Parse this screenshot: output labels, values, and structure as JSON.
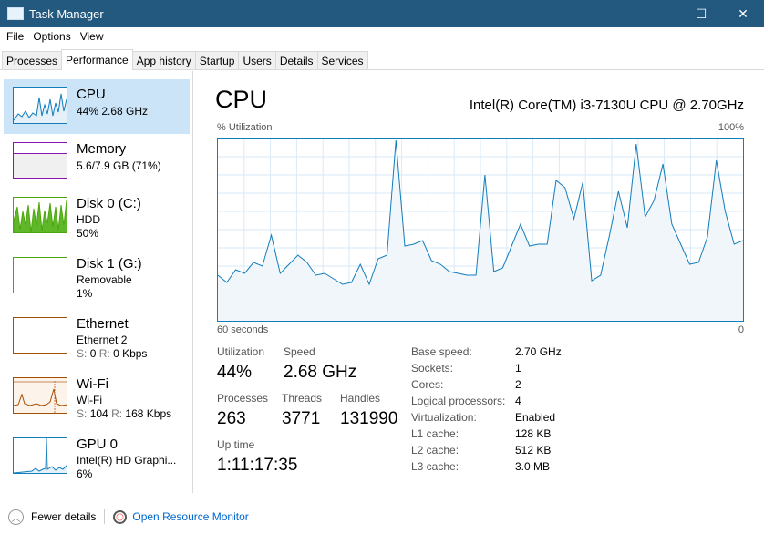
{
  "window": {
    "title": "Task Manager",
    "minimize": "—",
    "maximize": "☐",
    "close": "✕"
  },
  "menu": [
    "File",
    "Options",
    "View"
  ],
  "tabs": [
    "Processes",
    "Performance",
    "App history",
    "Startup",
    "Users",
    "Details",
    "Services"
  ],
  "active_tab": "Performance",
  "sidebar": [
    {
      "name": "CPU",
      "line1": "44%  2.68 GHz",
      "color": "#117dbb"
    },
    {
      "name": "Memory",
      "line1": "5.6/7.9 GB (71%)",
      "color": "#8b12ae"
    },
    {
      "name": "Disk 0 (C:)",
      "line1": "HDD",
      "line2": "50%",
      "color": "#4da60c"
    },
    {
      "name": "Disk 1 (G:)",
      "line1": "Removable",
      "line2": "1%",
      "color": "#4da60c"
    },
    {
      "name": "Ethernet",
      "line1": "Ethernet 2",
      "s_label": "S:",
      "s_val": "0",
      "r_label": "R:",
      "r_val": "0 Kbps",
      "color": "#a74f01"
    },
    {
      "name": "Wi-Fi",
      "line1": "Wi-Fi",
      "s_label": "S:",
      "s_val": "104",
      "r_label": "R:",
      "r_val": "168 Kbps",
      "color": "#a74f01"
    },
    {
      "name": "GPU 0",
      "line1": "Intel(R) HD Graphi...",
      "line2": "6%",
      "color": "#117dbb"
    }
  ],
  "main": {
    "title": "CPU",
    "model": "Intel(R) Core(TM) i3-7130U CPU @ 2.70GHz",
    "util_label": "% Utilization",
    "max_label": "100%",
    "time_label": "60 seconds",
    "min_label": "0",
    "stats": {
      "utilization_label": "Utilization",
      "utilization": "44%",
      "speed_label": "Speed",
      "speed": "2.68 GHz",
      "processes_label": "Processes",
      "processes": "263",
      "threads_label": "Threads",
      "threads": "3771",
      "handles_label": "Handles",
      "handles": "131990",
      "uptime_label": "Up time",
      "uptime": "1:11:17:35"
    },
    "details": [
      [
        "Base speed:",
        "2.70 GHz"
      ],
      [
        "Sockets:",
        "1"
      ],
      [
        "Cores:",
        "2"
      ],
      [
        "Logical processors:",
        "4"
      ],
      [
        "Virtualization:",
        "Enabled"
      ],
      [
        "L1 cache:",
        "128 KB"
      ],
      [
        "L2 cache:",
        "512 KB"
      ],
      [
        "L3 cache:",
        "3.0 MB"
      ]
    ]
  },
  "chart_data": {
    "type": "area",
    "ylim": [
      0,
      100
    ],
    "xlim": [
      60,
      0
    ],
    "color": "#117dbb",
    "values": [
      25,
      21,
      28,
      26,
      32,
      30,
      47,
      26,
      31,
      36,
      32,
      25,
      26,
      23,
      20,
      21,
      31,
      20,
      34,
      36,
      99,
      41,
      42,
      44,
      33,
      31,
      27,
      26,
      25,
      25,
      80,
      27,
      29,
      41,
      53,
      41,
      42,
      42,
      77,
      73,
      56,
      76,
      22,
      25,
      47,
      71,
      51,
      97,
      57,
      66,
      86,
      53,
      42,
      31,
      32,
      46,
      88,
      60,
      42,
      44
    ]
  },
  "footer": {
    "fewer": "Fewer details",
    "resmon": "Open Resource Monitor"
  }
}
